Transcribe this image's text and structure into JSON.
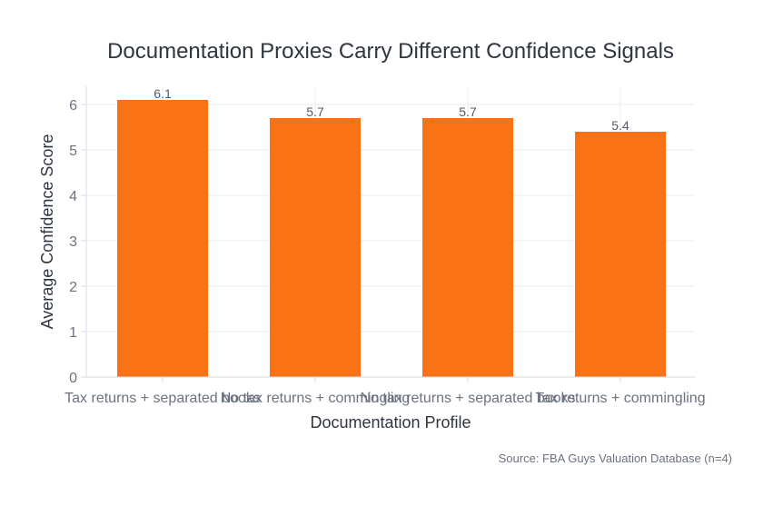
{
  "chart_data": {
    "type": "bar",
    "title": "Documentation Proxies Carry Different Confidence Signals",
    "xlabel": "Documentation Profile",
    "ylabel": "Average Confidence Score",
    "categories": [
      "Tax returns + separated books",
      "No tax returns + commingling",
      "No tax returns + separated books",
      "Tax returns + commingling"
    ],
    "values": [
      6.1,
      5.7,
      5.7,
      5.4
    ],
    "data_labels": [
      "6.1",
      "5.7",
      "5.7",
      "5.4"
    ],
    "ylim": [
      0,
      6.4
    ],
    "yticks": [
      0,
      1,
      2,
      3,
      4,
      5,
      6
    ],
    "grid": true,
    "bar_color": "#f97316",
    "source": "Source: FBA Guys Valuation Database (n=4)"
  }
}
